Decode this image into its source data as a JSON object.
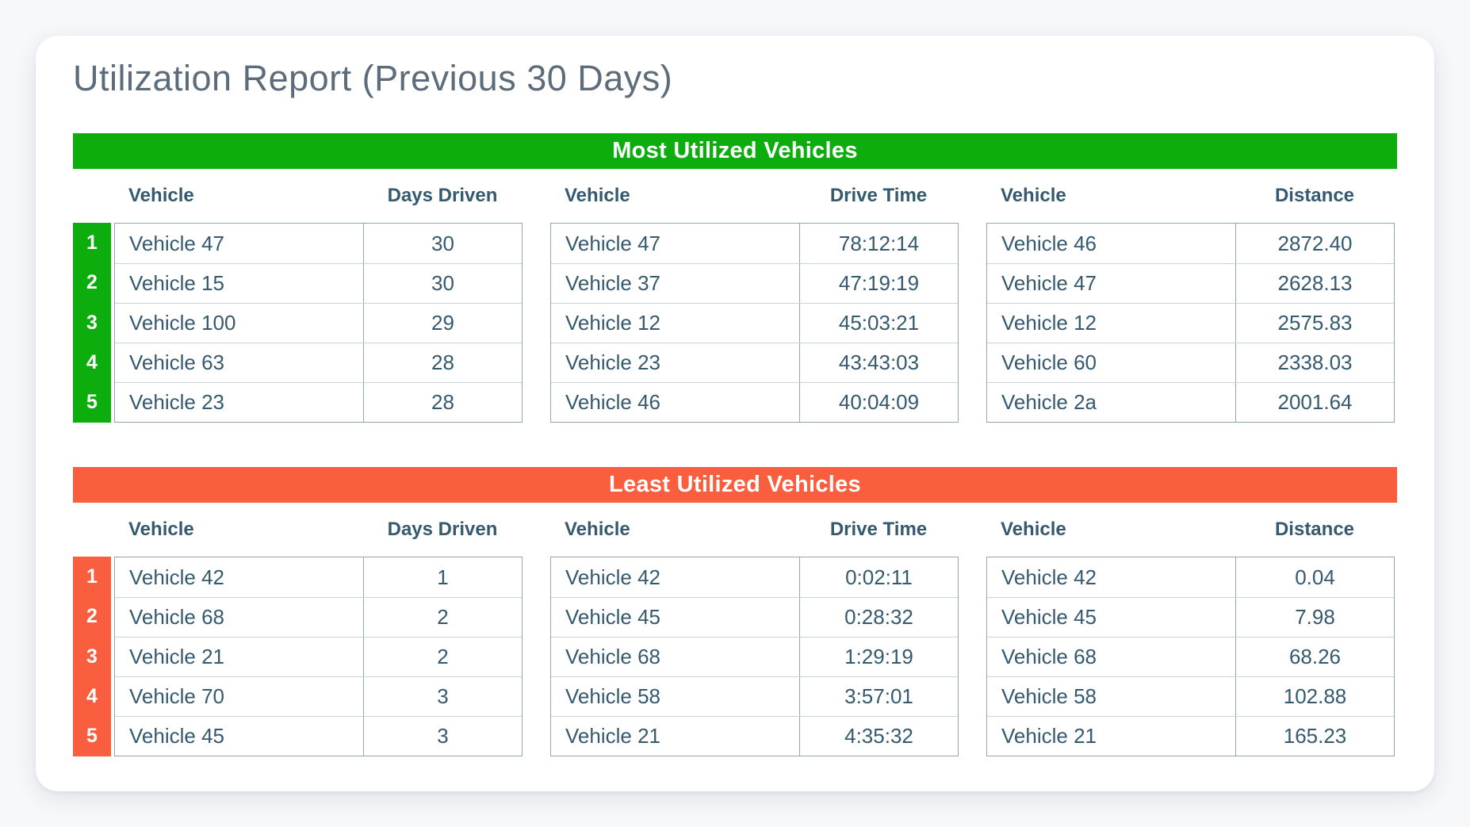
{
  "report": {
    "title": "Utilization Report (Previous 30 Days)"
  },
  "colors": {
    "most_header_bg": "#0cad0c",
    "least_header_bg": "#f95e3e",
    "table_text": "#35596e",
    "title_text": "#5d6c7a"
  },
  "sections": [
    {
      "title": "Most Utilized Vehicles",
      "tables": [
        {
          "vehicle_header": "Vehicle",
          "metric_header": "Days Driven",
          "rows": [
            {
              "rank": "1",
              "vehicle": "Vehicle 47",
              "value": "30"
            },
            {
              "rank": "2",
              "vehicle": "Vehicle 15",
              "value": "30"
            },
            {
              "rank": "3",
              "vehicle": "Vehicle 100",
              "value": "29"
            },
            {
              "rank": "4",
              "vehicle": "Vehicle 63",
              "value": "28"
            },
            {
              "rank": "5",
              "vehicle": "Vehicle 23",
              "value": "28"
            }
          ]
        },
        {
          "vehicle_header": "Vehicle",
          "metric_header": "Drive Time",
          "rows": [
            {
              "vehicle": "Vehicle 47",
              "value": "78:12:14"
            },
            {
              "vehicle": "Vehicle 37",
              "value": "47:19:19"
            },
            {
              "vehicle": "Vehicle 12",
              "value": "45:03:21"
            },
            {
              "vehicle": "Vehicle 23",
              "value": "43:43:03"
            },
            {
              "vehicle": "Vehicle 46",
              "value": "40:04:09"
            }
          ]
        },
        {
          "vehicle_header": "Vehicle",
          "metric_header": "Distance",
          "rows": [
            {
              "vehicle": "Vehicle 46",
              "value": "2872.40"
            },
            {
              "vehicle": "Vehicle 47",
              "value": "2628.13"
            },
            {
              "vehicle": "Vehicle 12",
              "value": "2575.83"
            },
            {
              "vehicle": "Vehicle 60",
              "value": "2338.03"
            },
            {
              "vehicle": "Vehicle 2a",
              "value": "2001.64"
            }
          ]
        }
      ]
    },
    {
      "title": "Least Utilized Vehicles",
      "tables": [
        {
          "vehicle_header": "Vehicle",
          "metric_header": "Days Driven",
          "rows": [
            {
              "rank": "1",
              "vehicle": "Vehicle 42",
              "value": "1"
            },
            {
              "rank": "2",
              "vehicle": "Vehicle 68",
              "value": "2"
            },
            {
              "rank": "3",
              "vehicle": "Vehicle 21",
              "value": "2"
            },
            {
              "rank": "4",
              "vehicle": "Vehicle 70",
              "value": "3"
            },
            {
              "rank": "5",
              "vehicle": "Vehicle 45",
              "value": "3"
            }
          ]
        },
        {
          "vehicle_header": "Vehicle",
          "metric_header": "Drive Time",
          "rows": [
            {
              "vehicle": "Vehicle 42",
              "value": "0:02:11"
            },
            {
              "vehicle": "Vehicle 45",
              "value": "0:28:32"
            },
            {
              "vehicle": "Vehicle 68",
              "value": "1:29:19"
            },
            {
              "vehicle": "Vehicle 58",
              "value": "3:57:01"
            },
            {
              "vehicle": "Vehicle 21",
              "value": "4:35:32"
            }
          ]
        },
        {
          "vehicle_header": "Vehicle",
          "metric_header": "Distance",
          "rows": [
            {
              "vehicle": "Vehicle 42",
              "value": "0.04"
            },
            {
              "vehicle": "Vehicle 45",
              "value": "7.98"
            },
            {
              "vehicle": "Vehicle 68",
              "value": "68.26"
            },
            {
              "vehicle": "Vehicle 58",
              "value": "102.88"
            },
            {
              "vehicle": "Vehicle 21",
              "value": "165.23"
            }
          ]
        }
      ]
    }
  ]
}
